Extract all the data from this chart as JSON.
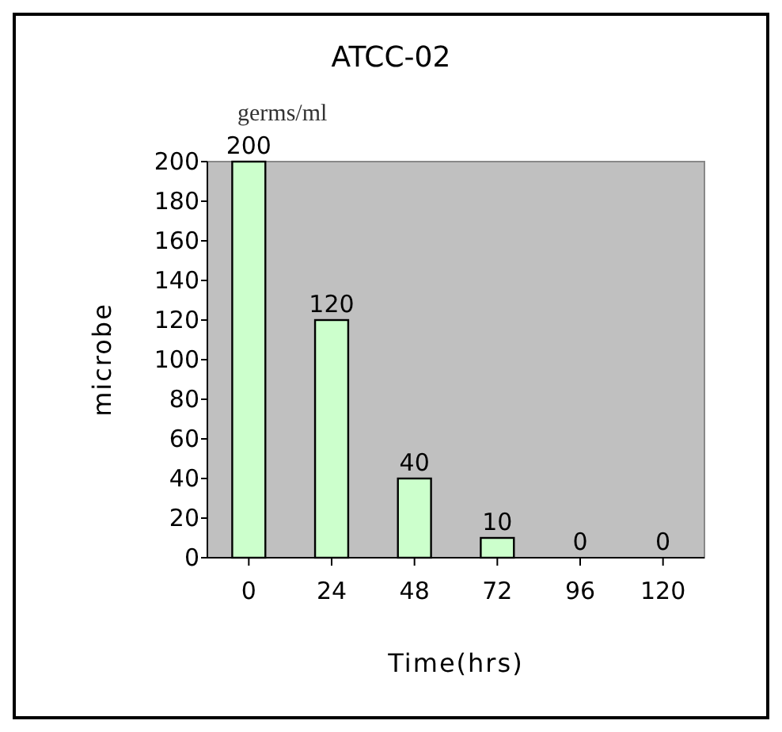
{
  "chart_data": {
    "type": "bar",
    "title": "ATCC-02",
    "subtitle": "germs/ml",
    "xlabel": "Time(hrs)",
    "ylabel": "microbe",
    "categories": [
      "0",
      "24",
      "48",
      "72",
      "96",
      "120"
    ],
    "values": [
      200,
      120,
      40,
      10,
      0,
      0
    ],
    "color": "#ccffcc",
    "ylim": [
      0,
      200
    ],
    "yticks": [
      0,
      20,
      40,
      60,
      80,
      100,
      120,
      140,
      160,
      180,
      200
    ],
    "data_labels": true,
    "grid": false
  }
}
